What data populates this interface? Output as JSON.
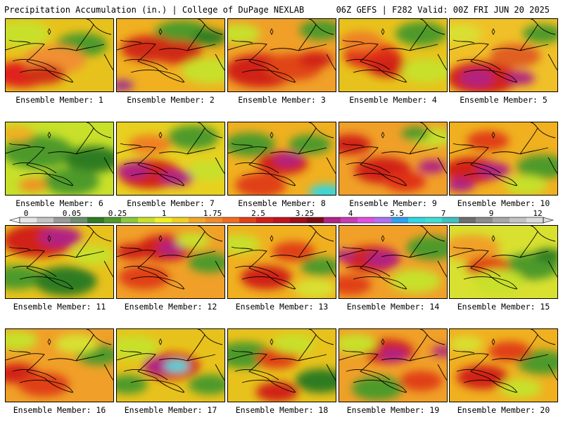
{
  "header": {
    "title_left": "Precipitation Accumulation (in.) | College of DuPage NEXLAB",
    "title_right": "06Z GEFS | F282 Valid: 00Z FRI JUN 20 2025"
  },
  "panels": [
    {
      "label": "Ensemble Member: 1",
      "base": "#e8c21c",
      "blobs": [
        [
          "#c8e02a",
          0.15,
          0.2,
          0.2
        ],
        [
          "#4e9a2c",
          0.7,
          0.35,
          0.18
        ],
        [
          "#e0201c",
          0.15,
          0.75,
          0.2
        ],
        [
          "#f09030",
          0.45,
          0.55,
          0.22
        ],
        [
          "#d03018",
          0.35,
          0.75,
          0.15
        ]
      ]
    },
    {
      "label": "Ensemble Member: 2",
      "base": "#f0b020",
      "blobs": [
        [
          "#4e9a2c",
          0.6,
          0.2,
          0.2
        ],
        [
          "#2e7c24",
          0.85,
          0.25,
          0.12
        ],
        [
          "#d02a18",
          0.3,
          0.4,
          0.2
        ],
        [
          "#d02a18",
          0.55,
          0.45,
          0.18
        ],
        [
          "#9a2c9a",
          0.05,
          0.9,
          0.08
        ],
        [
          "#c8e02a",
          0.85,
          0.7,
          0.2
        ]
      ]
    },
    {
      "label": "Ensemble Member: 3",
      "base": "#f0a028",
      "blobs": [
        [
          "#4e9a2c",
          0.85,
          0.15,
          0.15
        ],
        [
          "#c8e02a",
          0.1,
          0.2,
          0.15
        ],
        [
          "#d02018",
          0.3,
          0.7,
          0.25
        ],
        [
          "#e04418",
          0.6,
          0.65,
          0.2
        ],
        [
          "#d02018",
          0.8,
          0.55,
          0.12
        ]
      ]
    },
    {
      "label": "Ensemble Member: 4",
      "base": "#e8c21c",
      "blobs": [
        [
          "#4e9a2c",
          0.75,
          0.2,
          0.18
        ],
        [
          "#e03018",
          0.3,
          0.5,
          0.2
        ],
        [
          "#d02018",
          0.45,
          0.65,
          0.15
        ],
        [
          "#c8e02a",
          0.8,
          0.7,
          0.18
        ],
        [
          "#f08028",
          0.2,
          0.3,
          0.15
        ]
      ]
    },
    {
      "label": "Ensemble Member: 5",
      "base": "#f0c028",
      "blobs": [
        [
          "#4e9a2c",
          0.85,
          0.2,
          0.14
        ],
        [
          "#d02018",
          0.3,
          0.8,
          0.25
        ],
        [
          "#b02484",
          0.25,
          0.8,
          0.12
        ],
        [
          "#b02484",
          0.65,
          0.8,
          0.1
        ],
        [
          "#e06020",
          0.6,
          0.5,
          0.18
        ],
        [
          "#d8e030",
          0.1,
          0.2,
          0.15
        ]
      ]
    },
    {
      "label": "Ensemble Member: 6",
      "base": "#c8e02a",
      "blobs": [
        [
          "#4e9a2c",
          0.3,
          0.4,
          0.25
        ],
        [
          "#2e7c24",
          0.8,
          0.5,
          0.2
        ],
        [
          "#4e9a2c",
          0.6,
          0.8,
          0.2
        ],
        [
          "#f0b020",
          0.1,
          0.15,
          0.12
        ],
        [
          "#f09020",
          0.25,
          0.85,
          0.1
        ]
      ]
    },
    {
      "label": "Ensemble Member: 7",
      "base": "#e8d020",
      "blobs": [
        [
          "#4e9a2c",
          0.7,
          0.2,
          0.18
        ],
        [
          "#d02018",
          0.3,
          0.7,
          0.22
        ],
        [
          "#b02484",
          0.15,
          0.65,
          0.12
        ],
        [
          "#b02484",
          0.55,
          0.75,
          0.12
        ],
        [
          "#c8e02a",
          0.85,
          0.65,
          0.15
        ],
        [
          "#f08020",
          0.3,
          0.3,
          0.15
        ]
      ]
    },
    {
      "label": "Ensemble Member: 8",
      "base": "#f0b020",
      "blobs": [
        [
          "#4e9a2c",
          0.2,
          0.3,
          0.18
        ],
        [
          "#4e9a2c",
          0.75,
          0.3,
          0.15
        ],
        [
          "#d02018",
          0.5,
          0.55,
          0.18
        ],
        [
          "#b02484",
          0.55,
          0.5,
          0.1
        ],
        [
          "#e04018",
          0.3,
          0.85,
          0.18
        ],
        [
          "#30d8e0",
          0.9,
          0.95,
          0.12
        ]
      ]
    },
    {
      "label": "Ensemble Member: 9",
      "base": "#f0a028",
      "blobs": [
        [
          "#c8e02a",
          0.85,
          0.2,
          0.15
        ],
        [
          "#d02018",
          0.1,
          0.3,
          0.15
        ],
        [
          "#d02018",
          0.4,
          0.65,
          0.2
        ],
        [
          "#b02484",
          0.85,
          0.6,
          0.1
        ],
        [
          "#e03018",
          0.6,
          0.8,
          0.15
        ],
        [
          "#4e9a2c",
          0.7,
          0.15,
          0.1
        ]
      ]
    },
    {
      "label": "Ensemble Member: 10",
      "base": "#f0b020",
      "blobs": [
        [
          "#4e9a2c",
          0.85,
          0.6,
          0.18
        ],
        [
          "#d02018",
          0.2,
          0.65,
          0.2
        ],
        [
          "#b02484",
          0.4,
          0.65,
          0.12
        ],
        [
          "#b02484",
          0.1,
          0.85,
          0.1
        ],
        [
          "#e04018",
          0.35,
          0.25,
          0.15
        ],
        [
          "#c8e02a",
          0.7,
          0.85,
          0.15
        ]
      ]
    },
    {
      "label": "Ensemble Member: 11",
      "base": "#e8c21c",
      "blobs": [
        [
          "#d02018",
          0.3,
          0.2,
          0.25
        ],
        [
          "#b02484",
          0.5,
          0.15,
          0.15
        ],
        [
          "#4e9a2c",
          0.1,
          0.7,
          0.18
        ],
        [
          "#2e7c24",
          0.55,
          0.75,
          0.22
        ],
        [
          "#c8e02a",
          0.8,
          0.4,
          0.15
        ]
      ]
    },
    {
      "label": "Ensemble Member: 12",
      "base": "#f0a028",
      "blobs": [
        [
          "#d02018",
          0.45,
          0.3,
          0.2
        ],
        [
          "#b02484",
          0.5,
          0.3,
          0.1
        ],
        [
          "#d02018",
          0.15,
          0.35,
          0.12
        ],
        [
          "#4e9a2c",
          0.85,
          0.5,
          0.15
        ],
        [
          "#e04018",
          0.25,
          0.7,
          0.18
        ],
        [
          "#c8e02a",
          0.7,
          0.2,
          0.12
        ]
      ]
    },
    {
      "label": "Ensemble Member: 13",
      "base": "#f0b020",
      "blobs": [
        [
          "#c8e02a",
          0.1,
          0.25,
          0.15
        ],
        [
          "#4e9a2c",
          0.85,
          0.55,
          0.14
        ],
        [
          "#d02018",
          0.35,
          0.7,
          0.18
        ],
        [
          "#e04018",
          0.6,
          0.35,
          0.15
        ],
        [
          "#d8e030",
          0.8,
          0.85,
          0.15
        ]
      ]
    },
    {
      "label": "Ensemble Member: 14",
      "base": "#f0a028",
      "blobs": [
        [
          "#d02018",
          0.3,
          0.45,
          0.2
        ],
        [
          "#b02484",
          0.4,
          0.45,
          0.12
        ],
        [
          "#b02484",
          0.05,
          0.4,
          0.08
        ],
        [
          "#4e9a2c",
          0.85,
          0.3,
          0.18
        ],
        [
          "#c8e02a",
          0.7,
          0.75,
          0.18
        ],
        [
          "#e04018",
          0.1,
          0.8,
          0.15
        ]
      ]
    },
    {
      "label": "Ensemble Member: 15",
      "base": "#d8e030",
      "blobs": [
        [
          "#4e9a2c",
          0.75,
          0.55,
          0.2
        ],
        [
          "#f0a028",
          0.2,
          0.3,
          0.2
        ],
        [
          "#e04018",
          0.35,
          0.55,
          0.15
        ],
        [
          "#c8e02a",
          0.45,
          0.75,
          0.18
        ],
        [
          "#2e7c24",
          0.9,
          0.4,
          0.1
        ]
      ]
    },
    {
      "label": "Ensemble Member: 16",
      "base": "#f0a028",
      "blobs": [
        [
          "#c8e02a",
          0.1,
          0.15,
          0.15
        ],
        [
          "#d02018",
          0.1,
          0.6,
          0.15
        ],
        [
          "#e04018",
          0.35,
          0.75,
          0.18
        ],
        [
          "#4e9a2c",
          0.85,
          0.35,
          0.15
        ],
        [
          "#d8e030",
          0.65,
          0.2,
          0.15
        ]
      ]
    },
    {
      "label": "Ensemble Member: 17",
      "base": "#e8c21c",
      "blobs": [
        [
          "#c8e02a",
          0.15,
          0.25,
          0.18
        ],
        [
          "#4e9a2c",
          0.1,
          0.75,
          0.14
        ],
        [
          "#d02018",
          0.5,
          0.5,
          0.2
        ],
        [
          "#b02484",
          0.4,
          0.5,
          0.12
        ],
        [
          "#30d8e0",
          0.55,
          0.5,
          0.09
        ],
        [
          "#4e9a2c",
          0.85,
          0.75,
          0.15
        ]
      ]
    },
    {
      "label": "Ensemble Member: 18",
      "base": "#e8c21c",
      "blobs": [
        [
          "#4e9a2c",
          0.15,
          0.35,
          0.2
        ],
        [
          "#2e7c24",
          0.85,
          0.7,
          0.18
        ],
        [
          "#e04018",
          0.45,
          0.4,
          0.15
        ],
        [
          "#d02018",
          0.45,
          0.85,
          0.15
        ],
        [
          "#c8e02a",
          0.6,
          0.2,
          0.15
        ]
      ]
    },
    {
      "label": "Ensemble Member: 19",
      "base": "#f0a028",
      "blobs": [
        [
          "#d02018",
          0.45,
          0.3,
          0.18
        ],
        [
          "#b02484",
          0.5,
          0.35,
          0.1
        ],
        [
          "#b02484",
          0.95,
          0.3,
          0.08
        ],
        [
          "#4e9a2c",
          0.35,
          0.8,
          0.18
        ],
        [
          "#c8e02a",
          0.15,
          0.2,
          0.15
        ],
        [
          "#e04018",
          0.75,
          0.7,
          0.15
        ]
      ]
    },
    {
      "label": "Ensemble Member: 20",
      "base": "#f0b020",
      "blobs": [
        [
          "#4e9a2c",
          0.85,
          0.45,
          0.18
        ],
        [
          "#d02018",
          0.3,
          0.65,
          0.18
        ],
        [
          "#e04018",
          0.55,
          0.3,
          0.15
        ],
        [
          "#c8e02a",
          0.65,
          0.8,
          0.15
        ],
        [
          "#d8e030",
          0.15,
          0.2,
          0.12
        ]
      ]
    }
  ],
  "legend": {
    "labels": [
      "0",
      "0.05",
      "0.25",
      "1",
      "1.75",
      "2.5",
      "3.25",
      "4",
      "5.5",
      "7",
      "9",
      "12"
    ],
    "colors": [
      "#e6e6e6",
      "#c4c4c4",
      "#9a9a9a",
      "#6e8e6e",
      "#2e7c24",
      "#4e9a2c",
      "#8cc83c",
      "#c8e02a",
      "#f0f020",
      "#f0d020",
      "#f0a828",
      "#f08c28",
      "#f06c20",
      "#e04018",
      "#d02018",
      "#c0141c",
      "#a01018",
      "#7c0c14",
      "#b02484",
      "#c83cb4",
      "#e050e0",
      "#b070f0",
      "#30a0f0",
      "#30d8e0",
      "#40e0d0",
      "#40c0c0",
      "#6e6e6e",
      "#8c8c8c",
      "#a8a8a8",
      "#c4c4c4",
      "#dcdcdc"
    ]
  }
}
